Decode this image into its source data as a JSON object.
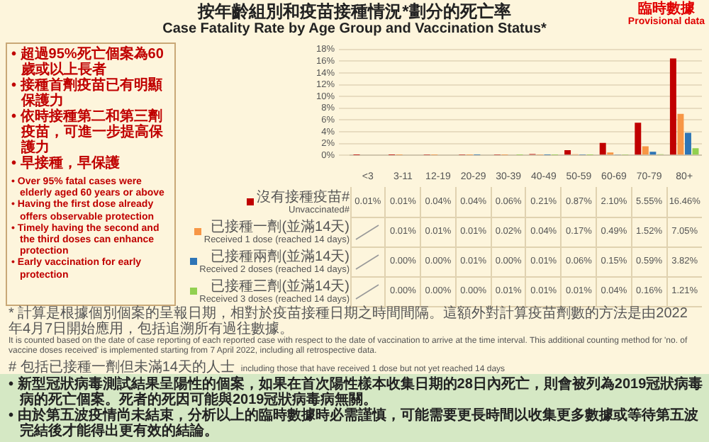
{
  "chart_data": {
    "type": "bar",
    "title": "按年齡組別和疫苗接種情況*劃分的死亡率",
    "subtitle": "Case Fatality Rate by Age Group and Vaccination Status*",
    "categories": [
      "<3",
      "3-11",
      "12-19",
      "20-29",
      "30-39",
      "40-49",
      "50-59",
      "60-69",
      "70-79",
      "80+"
    ],
    "series": [
      {
        "name": "沒有接種疫苗#\nUnvaccinated#",
        "color": "#c00000",
        "values": [
          0.01,
          0.01,
          0.04,
          0.04,
          0.06,
          0.21,
          0.87,
          2.1,
          5.55,
          16.46
        ],
        "value_labels": [
          "0.01%",
          "0.01%",
          "0.04%",
          "0.04%",
          "0.06%",
          "0.21%",
          "0.87%",
          "2.10%",
          "5.55%",
          "16.46%"
        ]
      },
      {
        "name": "已接種一劑(並滿14天)\nReceived 1 dose (reached 14 days)",
        "color": "#f79646",
        "values": [
          null,
          0.01,
          0.01,
          0.01,
          0.02,
          0.04,
          0.17,
          0.49,
          1.52,
          7.05
        ],
        "value_labels": [
          null,
          "0.01%",
          "0.01%",
          "0.01%",
          "0.02%",
          "0.04%",
          "0.17%",
          "0.49%",
          "1.52%",
          "7.05%"
        ]
      },
      {
        "name": "已接種兩劑(並滿14天)\nReceived 2 doses (reached 14 days)",
        "color": "#2e75b6",
        "values": [
          null,
          0.0,
          0.0,
          0.01,
          0.0,
          0.01,
          0.06,
          0.15,
          0.59,
          3.82
        ],
        "value_labels": [
          null,
          "0.00%",
          "0.00%",
          "0.01%",
          "0.00%",
          "0.01%",
          "0.06%",
          "0.15%",
          "0.59%",
          "3.82%"
        ]
      },
      {
        "name": "已接種三劑(並滿14天)\nReceived 3 doses (reached 14 days)",
        "color": "#92d050",
        "values": [
          null,
          0.0,
          0.0,
          0.0,
          0.01,
          0.01,
          0.01,
          0.04,
          0.16,
          1.21
        ],
        "value_labels": [
          null,
          "0.00%",
          "0.00%",
          "0.00%",
          "0.01%",
          "0.01%",
          "0.01%",
          "0.04%",
          "0.16%",
          "1.21%"
        ]
      }
    ],
    "ylim": [
      0,
      18
    ],
    "yticks": [
      {
        "value": 0,
        "label": "0%"
      },
      {
        "value": 2,
        "label": "2%"
      },
      {
        "value": 4,
        "label": "4%"
      },
      {
        "value": 6,
        "label": "6%"
      },
      {
        "value": 8,
        "label": "8%"
      },
      {
        "value": 10,
        "label": "10%"
      },
      {
        "value": 12,
        "label": "12%"
      },
      {
        "value": 14,
        "label": "14%"
      },
      {
        "value": 16,
        "label": "16%"
      },
      {
        "value": 18,
        "label": "18%"
      }
    ],
    "grid": "y",
    "legend": "bottom left",
    "annotations": [
      "臨時數據",
      "Provisional data",
      "• 超過95%死亡個案為60歲或以上長者",
      "• 接種首劑疫苗已有明顯保護力",
      "• 依時接種第二和第三劑疫苗，可進一步提高保護力",
      "• 早接種，早保護",
      "• Over 95% fatal cases were elderly aged 60 years or above",
      "• Having the first dose already offers observable protection",
      "• Timely having the second and the third doses can enhance protection",
      "• Early vaccination for early protection",
      "* 計算是根據個別個案的呈報日期，相對於疫苗接種日期之時間間隔。這額外對計算疫苗劑數的方法是由2022年4月7日開始應用，包括追溯所有過往數據。",
      "It is counted based on the date of case reporting of each reported case with respect to the date of vaccination to arrive at the time interval. This additional counting method for 'no. of vaccine doses received' is implemented starting from 7 April 2022, including all retrospective data.",
      "# 包括已接種一劑但未滿14天的人士",
      "including those that have received 1 dose but not yet reached 14 days",
      "• 新型冠狀病毒測試結果呈陽性的個案，如果在首次陽性樣本收集日期的28日內死亡，則會被列為2019冠狀病毒病的死亡個案。死者的死因可能與2019冠狀病毒病無關。",
      "• 由於第五波疫情尚未結束，分析以上的臨時數據時必需謹慎，可能需要更長時間以收集更多數據或等待第五波完結後才能得出更有效的結論。"
    ]
  }
}
